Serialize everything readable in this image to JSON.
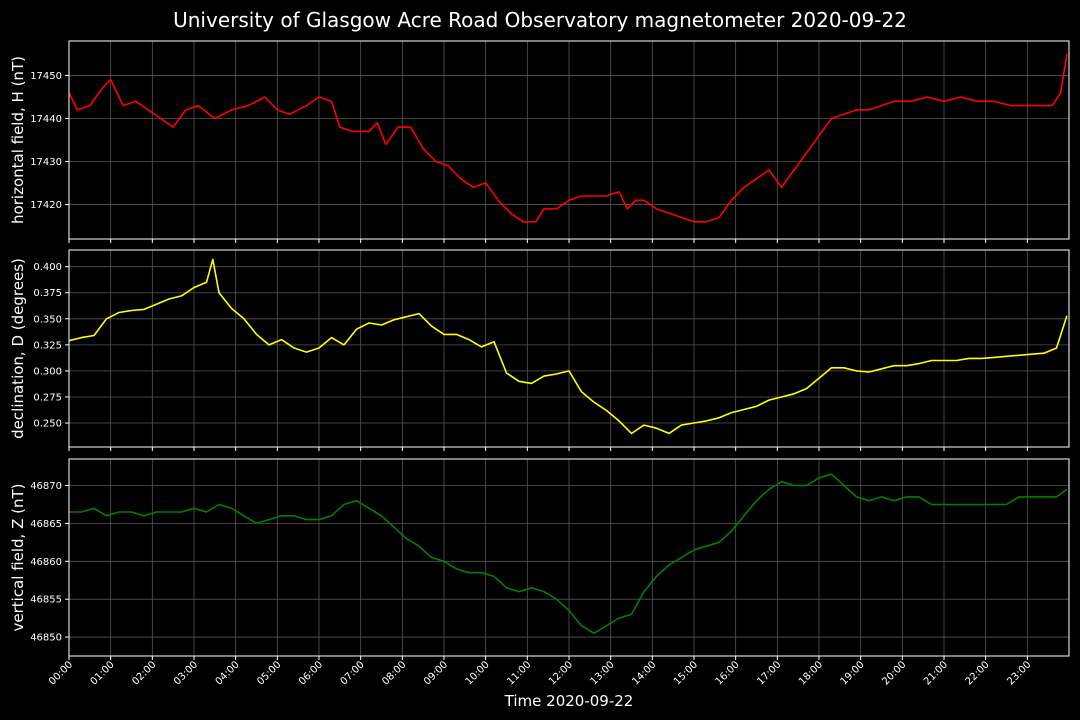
{
  "figure": {
    "title": "University of Glasgow Acre Road Observatory magnetometer 2020-09-22",
    "xlabel": "Time 2020-09-22"
  },
  "chart_data": [
    {
      "type": "line",
      "ylabel": "horizontal field, H (nT)",
      "color": "#ff0000",
      "xlim": [
        0,
        24
      ],
      "ylim": [
        17412,
        17458
      ],
      "yticks": [
        17420,
        17430,
        17440,
        17450
      ],
      "x_ticks": [
        "00:00",
        "01:00",
        "02:00",
        "03:00",
        "04:00",
        "05:00",
        "06:00",
        "07:00",
        "08:00",
        "09:00",
        "10:00",
        "11:00",
        "12:00",
        "13:00",
        "14:00",
        "15:00",
        "16:00",
        "17:00",
        "18:00",
        "19:00",
        "20:00",
        "21:00",
        "22:00",
        "23:00"
      ],
      "grid": true,
      "x": [
        0,
        0.2,
        0.5,
        0.8,
        1.0,
        1.3,
        1.6,
        1.9,
        2.2,
        2.5,
        2.8,
        3.1,
        3.5,
        3.9,
        4.3,
        4.7,
        5.0,
        5.3,
        5.7,
        6.0,
        6.3,
        6.5,
        6.8,
        7.2,
        7.4,
        7.6,
        7.9,
        8.2,
        8.5,
        8.8,
        9.1,
        9.4,
        9.7,
        10.0,
        10.3,
        10.6,
        10.9,
        11.2,
        11.4,
        11.7,
        12.0,
        12.3,
        12.6,
        12.9,
        13.2,
        13.4,
        13.6,
        13.8,
        14.1,
        14.4,
        14.7,
        15.0,
        15.3,
        15.6,
        15.9,
        16.2,
        16.5,
        16.8,
        17.1,
        17.4,
        17.7,
        18.0,
        18.3,
        18.6,
        18.9,
        19.2,
        19.5,
        19.8,
        20.2,
        20.6,
        21.0,
        21.4,
        21.8,
        22.2,
        22.6,
        23.0,
        23.3,
        23.6,
        23.8,
        23.95
      ],
      "values": [
        17446,
        17442,
        17443,
        17447,
        17449,
        17443,
        17444,
        17442,
        17440,
        17438,
        17442,
        17443,
        17440,
        17442,
        17443,
        17445,
        17442,
        17441,
        17443,
        17445,
        17444,
        17438,
        17437,
        17437,
        17439,
        17434,
        17438,
        17438,
        17433,
        17430,
        17429,
        17426,
        17424,
        17425,
        17421,
        17418,
        17416,
        17416,
        17419,
        17419,
        17421,
        17422,
        17422,
        17422,
        17423,
        17419,
        17421,
        17421,
        17419,
        17418,
        17417,
        17416,
        17416,
        17417,
        17421,
        17424,
        17426,
        17428,
        17424,
        17428,
        17432,
        17436,
        17440,
        17441,
        17442,
        17442,
        17443,
        17444,
        17444,
        17445,
        17444,
        17445,
        17444,
        17444,
        17443,
        17443,
        17443,
        17443,
        17446,
        17455
      ]
    },
    {
      "type": "line",
      "ylabel": "declination, D (degrees)",
      "color": "#ffff00",
      "xlim": [
        0,
        24
      ],
      "ylim": [
        0.227,
        0.416
      ],
      "yticks": [
        0.25,
        0.275,
        0.3,
        0.325,
        0.35,
        0.375,
        0.4
      ],
      "ytick_labels": [
        "0.250",
        "0.275",
        "0.300",
        "0.325",
        "0.350",
        "0.375",
        "0.400"
      ],
      "grid": true,
      "x": [
        0,
        0.3,
        0.6,
        0.9,
        1.2,
        1.5,
        1.8,
        2.1,
        2.4,
        2.7,
        3.0,
        3.3,
        3.45,
        3.6,
        3.9,
        4.2,
        4.5,
        4.8,
        5.1,
        5.4,
        5.7,
        6.0,
        6.3,
        6.6,
        6.9,
        7.2,
        7.5,
        7.8,
        8.1,
        8.4,
        8.7,
        9.0,
        9.3,
        9.6,
        9.9,
        10.2,
        10.5,
        10.8,
        11.1,
        11.4,
        11.7,
        12.0,
        12.3,
        12.6,
        12.9,
        13.2,
        13.5,
        13.8,
        14.1,
        14.4,
        14.7,
        15.0,
        15.3,
        15.6,
        15.9,
        16.2,
        16.5,
        16.8,
        17.1,
        17.4,
        17.7,
        18.0,
        18.3,
        18.6,
        18.9,
        19.2,
        19.5,
        19.8,
        20.1,
        20.4,
        20.7,
        21.0,
        21.3,
        21.6,
        21.9,
        22.2,
        22.5,
        22.8,
        23.1,
        23.4,
        23.7,
        23.95
      ],
      "values": [
        0.329,
        0.332,
        0.334,
        0.35,
        0.356,
        0.358,
        0.359,
        0.364,
        0.369,
        0.372,
        0.38,
        0.385,
        0.407,
        0.375,
        0.36,
        0.35,
        0.335,
        0.325,
        0.33,
        0.322,
        0.318,
        0.322,
        0.332,
        0.325,
        0.34,
        0.346,
        0.344,
        0.349,
        0.352,
        0.355,
        0.343,
        0.335,
        0.335,
        0.33,
        0.323,
        0.328,
        0.298,
        0.29,
        0.288,
        0.295,
        0.297,
        0.3,
        0.28,
        0.27,
        0.262,
        0.252,
        0.24,
        0.248,
        0.245,
        0.24,
        0.248,
        0.25,
        0.252,
        0.255,
        0.26,
        0.263,
        0.266,
        0.272,
        0.275,
        0.278,
        0.283,
        0.293,
        0.303,
        0.303,
        0.3,
        0.299,
        0.302,
        0.305,
        0.305,
        0.307,
        0.31,
        0.31,
        0.31,
        0.312,
        0.312,
        0.313,
        0.314,
        0.315,
        0.316,
        0.317,
        0.322,
        0.353
      ]
    },
    {
      "type": "line",
      "ylabel": "vertical field, Z (nT)",
      "color": "#008000",
      "xlim": [
        0,
        24
      ],
      "ylim": [
        46847.5,
        46873.5
      ],
      "yticks": [
        46850,
        46855,
        46860,
        46865,
        46870
      ],
      "grid": true,
      "x": [
        0,
        0.3,
        0.6,
        0.9,
        1.2,
        1.5,
        1.8,
        2.1,
        2.4,
        2.7,
        3.0,
        3.3,
        3.6,
        3.9,
        4.2,
        4.5,
        4.8,
        5.1,
        5.4,
        5.7,
        6.0,
        6.3,
        6.6,
        6.9,
        7.2,
        7.5,
        7.8,
        8.1,
        8.4,
        8.7,
        9.0,
        9.3,
        9.6,
        9.9,
        10.2,
        10.5,
        10.8,
        11.1,
        11.4,
        11.7,
        12.0,
        12.3,
        12.6,
        12.9,
        13.2,
        13.5,
        13.8,
        14.1,
        14.4,
        14.7,
        15.0,
        15.3,
        15.6,
        15.9,
        16.2,
        16.5,
        16.8,
        17.1,
        17.4,
        17.7,
        18.0,
        18.3,
        18.6,
        18.9,
        19.2,
        19.5,
        19.8,
        20.1,
        20.4,
        20.7,
        21.0,
        21.3,
        21.6,
        21.9,
        22.2,
        22.5,
        22.8,
        23.1,
        23.4,
        23.7,
        23.95
      ],
      "values": [
        46866.5,
        46866.5,
        46867,
        46866,
        46866.5,
        46866.5,
        46866,
        46866.5,
        46866.5,
        46866.5,
        46867,
        46866.5,
        46867.5,
        46867,
        46866,
        46865,
        46865.5,
        46866,
        46866,
        46865.5,
        46865.5,
        46866,
        46867.5,
        46868,
        46867,
        46866,
        46864.5,
        46863,
        46862,
        46860.5,
        46860,
        46859,
        46858.5,
        46858.5,
        46858,
        46856.5,
        46856,
        46856.5,
        46856,
        46855,
        46853.5,
        46851.5,
        46850.5,
        46851.5,
        46852.5,
        46853,
        46856,
        46858,
        46859.5,
        46860.5,
        46861.5,
        46862,
        46862.5,
        46864,
        46866,
        46868,
        46869.5,
        46870.5,
        46870,
        46870,
        46871,
        46871.5,
        46870,
        46868.5,
        46868,
        46868.5,
        46868,
        46868.5,
        46868.5,
        46867.5,
        46867.5,
        46867.5,
        46867.5,
        46867.5,
        46867.5,
        46867.5,
        46868.5,
        46868.5,
        46868.5,
        46868.5,
        46869.5
      ]
    }
  ]
}
